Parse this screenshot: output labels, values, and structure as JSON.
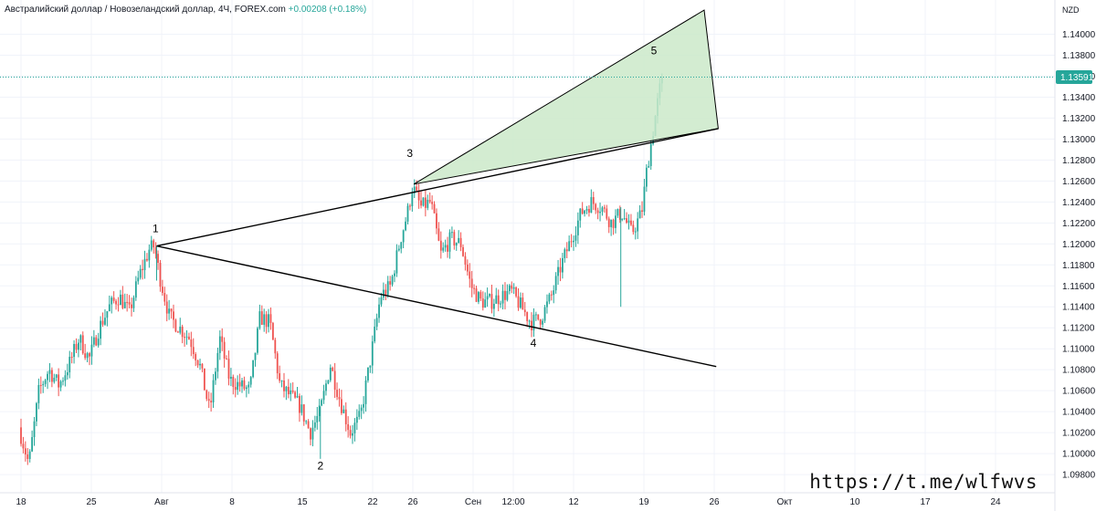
{
  "header": {
    "symbol_text": "Австралийский доллар / Новозеландский доллар, 4Ч, FOREX.com",
    "change_text": "+0.00208 (+0.18%)"
  },
  "price_axis": {
    "currency": "NZD",
    "last_price": "1.13591"
  },
  "watermark": "https://t.me/wlfwvs",
  "colors": {
    "up": "#26a69a",
    "down": "#ef5350",
    "grid": "#f0f3fa",
    "badge": "#26a69a",
    "wedge_fill": "#cbe9c9",
    "line": "#000000"
  },
  "chart_data": {
    "type": "candlestick",
    "symbol": "AUDNZD",
    "timeframe": "4H",
    "y_ticks": [
      1.098,
      1.1,
      1.102,
      1.104,
      1.106,
      1.108,
      1.11,
      1.112,
      1.114,
      1.116,
      1.118,
      1.12,
      1.122,
      1.124,
      1.126,
      1.128,
      1.13,
      1.132,
      1.134,
      1.136,
      1.138,
      1.14
    ],
    "ylim": [
      1.0977,
      1.1434
    ],
    "x_ticks": [
      {
        "label": "18",
        "day": 0
      },
      {
        "label": "25",
        "day": 7
      },
      {
        "label": "Авг",
        "day": 14
      },
      {
        "label": "8",
        "day": 21
      },
      {
        "label": "15",
        "day": 28
      },
      {
        "label": "22",
        "day": 35
      },
      {
        "label": "26",
        "day": 39
      },
      {
        "label": "Сен",
        "day": 45
      },
      {
        "label": "12:00",
        "day": 49
      },
      {
        "label": "12",
        "day": 55
      },
      {
        "label": "19",
        "day": 62
      },
      {
        "label": "26",
        "day": 69
      },
      {
        "label": "Окт",
        "day": 76
      },
      {
        "label": "10",
        "day": 83
      },
      {
        "label": "17",
        "day": 90
      },
      {
        "label": "24",
        "day": 97
      }
    ],
    "waypoints": [
      [
        0,
        1.1025
      ],
      [
        1,
        1.099
      ],
      [
        2,
        1.106
      ],
      [
        3,
        1.108
      ],
      [
        4,
        1.1065
      ],
      [
        5,
        1.1085
      ],
      [
        6,
        1.111
      ],
      [
        7,
        1.109
      ],
      [
        8,
        1.112
      ],
      [
        9,
        1.114
      ],
      [
        10,
        1.115
      ],
      [
        11,
        1.1135
      ],
      [
        12,
        1.117
      ],
      [
        13,
        1.1195
      ],
      [
        13.5,
        1.1198
      ],
      [
        14,
        1.117
      ],
      [
        15,
        1.113
      ],
      [
        16,
        1.112
      ],
      [
        17,
        1.111
      ],
      [
        18,
        1.1085
      ],
      [
        19,
        1.104
      ],
      [
        20,
        1.111
      ],
      [
        21,
        1.107
      ],
      [
        22,
        1.1065
      ],
      [
        23,
        1.106
      ],
      [
        24,
        1.113
      ],
      [
        25,
        1.1125
      ],
      [
        26,
        1.1065
      ],
      [
        27,
        1.1055
      ],
      [
        28,
        1.1045
      ],
      [
        29,
        1.102
      ],
      [
        30,
        1.104
      ],
      [
        31,
        1.1085
      ],
      [
        32,
        1.105
      ],
      [
        33,
        1.102
      ],
      [
        34,
        1.1035
      ],
      [
        35,
        1.109
      ],
      [
        36,
        1.115
      ],
      [
        37,
        1.116
      ],
      [
        38,
        1.1205
      ],
      [
        38.7,
        1.123
      ],
      [
        39.2,
        1.1255
      ],
      [
        40,
        1.1235
      ],
      [
        41,
        1.124
      ],
      [
        42,
        1.119
      ],
      [
        43,
        1.1205
      ],
      [
        44,
        1.12
      ],
      [
        45,
        1.116
      ],
      [
        46,
        1.1145
      ],
      [
        47,
        1.1145
      ],
      [
        48,
        1.115
      ],
      [
        49,
        1.1155
      ],
      [
        50,
        1.114
      ],
      [
        51,
        1.1125
      ],
      [
        52,
        1.113
      ],
      [
        53,
        1.115
      ],
      [
        54,
        1.118
      ],
      [
        55,
        1.1205
      ],
      [
        56,
        1.123
      ],
      [
        57,
        1.124
      ],
      [
        58,
        1.1235
      ],
      [
        59,
        1.122
      ],
      [
        60,
        1.123
      ],
      [
        61,
        1.121
      ],
      [
        62,
        1.123
      ],
      [
        62.5,
        1.127
      ],
      [
        63,
        1.13
      ],
      [
        63.5,
        1.133
      ],
      [
        64.0,
        1.1359
      ]
    ],
    "annotations": {
      "wave_labels": [
        {
          "label": "1",
          "day": 13.4,
          "price": 1.1211
        },
        {
          "label": "2",
          "day": 29.8,
          "price": 1.0985
        },
        {
          "label": "3",
          "day": 38.7,
          "price": 1.1283
        },
        {
          "label": "4",
          "day": 51.0,
          "price": 1.1102
        },
        {
          "label": "5",
          "day": 63.0,
          "price": 1.1381
        }
      ],
      "upper_line": [
        [
          13.5,
          1.1198
        ],
        [
          69.4,
          1.131
        ]
      ],
      "lower_line": [
        [
          13.5,
          1.1198
        ],
        [
          69.2,
          1.1083
        ]
      ],
      "wedge": [
        [
          39.1,
          1.1257
        ],
        [
          68.0,
          1.1423
        ],
        [
          69.4,
          1.131
        ]
      ],
      "last_price_line": 1.13591
    }
  }
}
